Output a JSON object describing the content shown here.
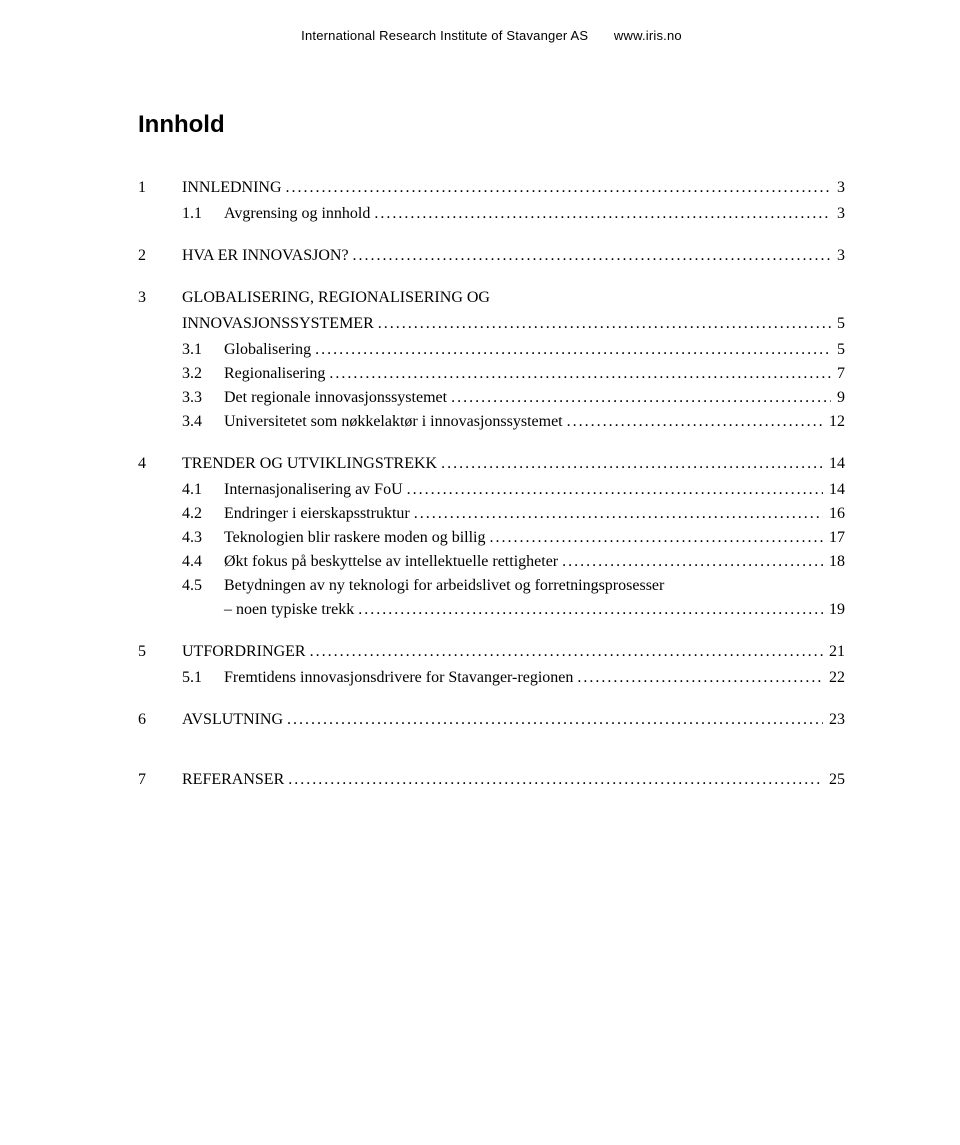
{
  "header": {
    "org": "International Research Institute of Stavanger AS",
    "url": "www.iris.no"
  },
  "tocTitle": "Innhold",
  "entries": [
    {
      "level": 1,
      "num": "1",
      "label": "INNLEDNING",
      "page": "3",
      "first": true
    },
    {
      "level": 2,
      "num": "1.1",
      "label": "Avgrensing og innhold",
      "page": "3"
    },
    {
      "level": 1,
      "num": "2",
      "label": "HVA ER INNOVASJON?",
      "page": "3"
    },
    {
      "level": 1,
      "num": "3",
      "label": "GLOBALISERING, REGIONALISERING OG",
      "nowrap": true
    },
    {
      "level": 1,
      "num": "",
      "label": "INNOVASJONSSYSTEMER",
      "page": "5",
      "continuation": true
    },
    {
      "level": 2,
      "num": "3.1",
      "label": "Globalisering",
      "page": "5"
    },
    {
      "level": 2,
      "num": "3.2",
      "label": "Regionalisering",
      "page": "7"
    },
    {
      "level": 2,
      "num": "3.3",
      "label": "Det regionale innovasjonssystemet",
      "page": "9"
    },
    {
      "level": 2,
      "num": "3.4",
      "label": "Universitetet som nøkkelaktør i innovasjonssystemet",
      "page": "12"
    },
    {
      "level": 1,
      "num": "4",
      "label": "TRENDER OG UTVIKLINGSTREKK",
      "page": "14"
    },
    {
      "level": 2,
      "num": "4.1",
      "label": "Internasjonalisering av FoU",
      "page": "14"
    },
    {
      "level": 2,
      "num": "4.2",
      "label": "Endringer i eierskapsstruktur",
      "page": "16"
    },
    {
      "level": 2,
      "num": "4.3",
      "label": "Teknologien blir raskere moden og billig",
      "page": "17"
    },
    {
      "level": 2,
      "num": "4.4",
      "label": "Økt fokus på beskyttelse av intellektuelle rettigheter",
      "page": "18"
    },
    {
      "level": 2,
      "num": "4.5",
      "label": "Betydningen av ny teknologi for arbeidslivet og forretningsprosesser",
      "nowrap": true
    },
    {
      "level": 2,
      "num": "",
      "label": "– noen typiske trekk",
      "page": "19",
      "indent": true
    },
    {
      "level": 1,
      "num": "5",
      "label": "UTFORDRINGER",
      "page": "21"
    },
    {
      "level": 2,
      "num": "5.1",
      "label": "Fremtidens innovasjonsdrivere for Stavanger-regionen",
      "page": "22"
    },
    {
      "level": 1,
      "num": "6",
      "label": "AVSLUTNING",
      "page": "23"
    },
    {
      "level": 1,
      "num": "7",
      "label": "REFERANSER",
      "page": "25",
      "extraTop": true
    }
  ]
}
